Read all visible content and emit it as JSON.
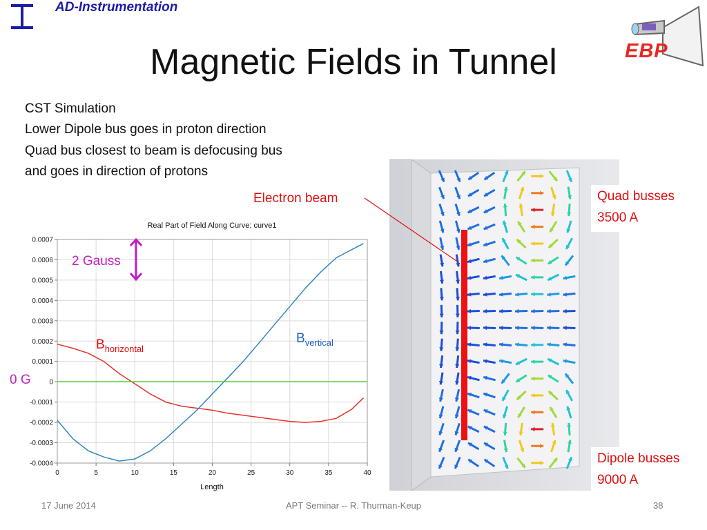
{
  "header": {
    "org": "AD-Instrumentation",
    "logo_text": "EBP"
  },
  "title": "Magnetic Fields in Tunnel",
  "description": [
    "CST Simulation",
    "Lower Dipole bus goes in proton direction",
    "Quad bus closest to beam is defocusing bus",
    "and goes in direction of protons"
  ],
  "sim_labels": {
    "electron_beam": "Electron beam",
    "quad_line1": "Quad busses",
    "quad_line2": "3500 A",
    "dipole_line1": "Dipole busses",
    "dipole_line2": "9000 A"
  },
  "annotations": {
    "gauss": "2 Gauss",
    "zero": "0 G",
    "b_h_main": "B",
    "b_h_sub": "horizontal",
    "b_v_main": "B",
    "b_v_sub": "vertical"
  },
  "footer": {
    "date": "17 June 2014",
    "center": "APT Seminar -- R. Thurman-Keup",
    "page": "38"
  },
  "colors": {
    "horizontal": "#e8312a",
    "vertical": "#2e86c1",
    "zero_line": "#55cc33",
    "gauss_marker": "#c21fc2",
    "beam": "#ee1111"
  },
  "chart_data": {
    "type": "line",
    "title": "Real Part of Field Along Curve: curve1",
    "xlabel": "Length",
    "ylabel": "",
    "xlim": [
      0,
      40
    ],
    "ylim": [
      -0.0004,
      0.0007
    ],
    "xticks": [
      0,
      5,
      10,
      15,
      20,
      25,
      30,
      35,
      40
    ],
    "yticks": [
      {
        "v": 0.0007,
        "label": "0.0007"
      },
      {
        "v": 0.0006,
        "label": "0.0006"
      },
      {
        "v": 0.0005,
        "label": "0.0005"
      },
      {
        "v": 0.0004,
        "label": "0.0004"
      },
      {
        "v": 0.0003,
        "label": "0.0003"
      },
      {
        "v": 0.0002,
        "label": "0.0002"
      },
      {
        "v": 0.0001,
        "label": "0.0001"
      },
      {
        "v": 0,
        "label": "0"
      },
      {
        "v": -0.0001,
        "label": "-0.0001"
      },
      {
        "v": -0.0002,
        "label": "-0.0002"
      },
      {
        "v": -0.0003,
        "label": "-0.0003"
      },
      {
        "v": -0.0004,
        "label": "-0.0004"
      }
    ],
    "grid": true,
    "series": [
      {
        "name": "Bhorizontal",
        "x": [
          0,
          2,
          4,
          6,
          8,
          10,
          12,
          14,
          16,
          18,
          20,
          22,
          24,
          26,
          28,
          30,
          32,
          34,
          36,
          38,
          39.5
        ],
        "y": [
          0.000185,
          0.000165,
          0.00014,
          0.0001,
          4e-05,
          -1e-05,
          -6e-05,
          -0.0001,
          -0.00012,
          -0.00013,
          -0.00014,
          -0.000155,
          -0.000165,
          -0.000175,
          -0.000185,
          -0.000195,
          -0.0002,
          -0.000195,
          -0.00018,
          -0.000135,
          -8e-05
        ]
      },
      {
        "name": "Bvertical",
        "x": [
          0,
          2,
          4,
          6,
          8,
          10,
          12,
          14,
          16,
          18,
          20,
          22,
          24,
          26,
          28,
          30,
          32,
          34,
          36,
          38,
          39.5
        ],
        "y": [
          -0.00019,
          -0.00028,
          -0.00034,
          -0.00037,
          -0.00039,
          -0.00038,
          -0.00034,
          -0.00028,
          -0.00021,
          -0.00014,
          -6e-05,
          2e-05,
          0.0001,
          0.00019,
          0.00028,
          0.00037,
          0.00046,
          0.00054,
          0.00061,
          0.00065,
          0.00068
        ]
      },
      {
        "name": "0 G",
        "x": [
          0,
          40
        ],
        "y": [
          0,
          0
        ]
      }
    ]
  }
}
